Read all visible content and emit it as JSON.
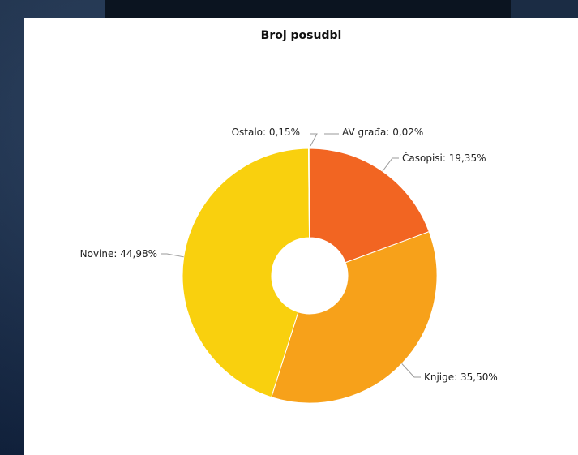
{
  "chart_data": {
    "type": "pie",
    "donut": true,
    "title": "Broj posudbi",
    "slices": [
      {
        "name": "AV građa",
        "label": "AV građa: 0,02%",
        "value": 0.02,
        "color": "#f26522"
      },
      {
        "name": "Časopisi",
        "label": "Časopisi: 19,35%",
        "value": 19.35,
        "color": "#f26522"
      },
      {
        "name": "Knjige",
        "label": "Knjige: 35,50%",
        "value": 35.5,
        "color": "#f7a11a"
      },
      {
        "name": "Novine",
        "label": "Novine: 44,98%",
        "value": 44.98,
        "color": "#f9d00e"
      },
      {
        "name": "Ostalo",
        "label": "Ostalo: 0,15%",
        "value": 0.15,
        "color": "#f9e05a"
      }
    ]
  }
}
